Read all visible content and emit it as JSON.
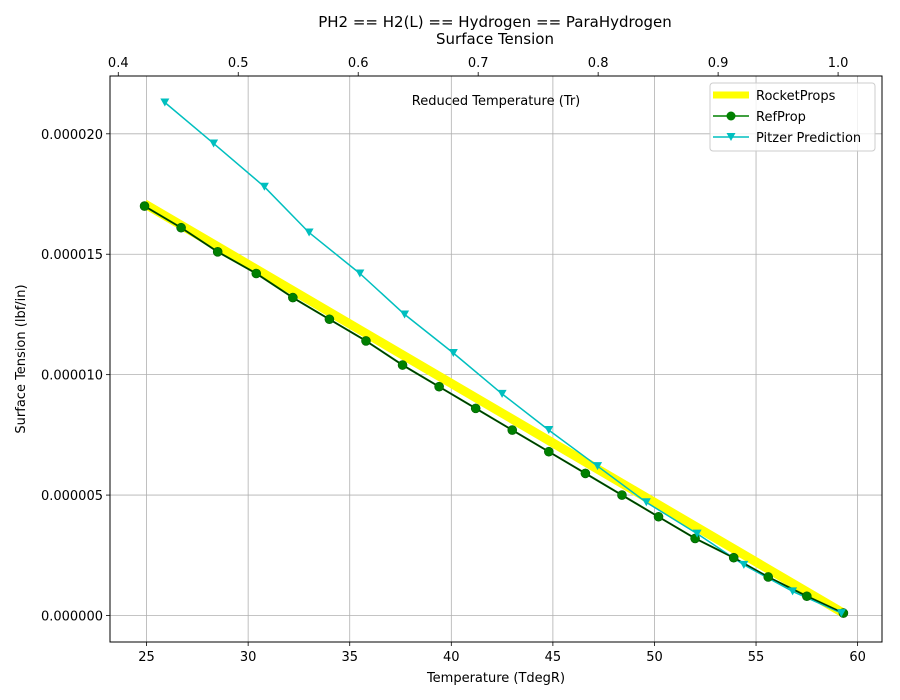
{
  "chart_data": {
    "type": "line",
    "title_line1": "PH2 == H2(L) == Hydrogen == ParaHydrogen",
    "title_line2": "Surface Tension",
    "xlabel": "Temperature (TdegR)",
    "ylabel": "Surface Tension (lbf/in)",
    "top_axis_label": "Reduced Temperature (Tr)",
    "xlim": [
      23.2,
      61.2
    ],
    "ylim": [
      -1.1e-06,
      2.24e-05
    ],
    "top_xlim": [
      0.3931,
      1.0366
    ],
    "x_ticks": [
      25,
      30,
      35,
      40,
      45,
      50,
      55,
      60
    ],
    "x_tick_labels": [
      "25",
      "30",
      "35",
      "40",
      "45",
      "50",
      "55",
      "60"
    ],
    "top_ticks": [
      0.4,
      0.5,
      0.6,
      0.7,
      0.8,
      0.9,
      1.0
    ],
    "top_tick_labels": [
      "0.4",
      "0.5",
      "0.6",
      "0.7",
      "0.8",
      "0.9",
      "1.0"
    ],
    "y_ticks": [
      0,
      5e-06,
      1e-05,
      1.5e-05,
      2e-05
    ],
    "y_tick_labels": [
      "0.000000",
      "0.000005",
      "0.000010",
      "0.000015",
      "0.000020"
    ],
    "grid": true,
    "legend_position": "top-right",
    "series": [
      {
        "name": "RocketProps",
        "color": "#ffff00",
        "style": "thick-line",
        "x": [
          24.9,
          59.3
        ],
        "y": [
          1.71e-05,
          1e-07
        ]
      },
      {
        "name": "RefProp",
        "color": "#008000",
        "style": "line-circle",
        "x": [
          24.9,
          26.7,
          28.5,
          30.4,
          32.2,
          34.0,
          35.8,
          37.6,
          39.4,
          41.2,
          43.0,
          44.8,
          46.6,
          48.4,
          50.2,
          52.0,
          53.9,
          55.6,
          57.5,
          59.3
        ],
        "y": [
          1.7e-05,
          1.61e-05,
          1.51e-05,
          1.42e-05,
          1.32e-05,
          1.23e-05,
          1.14e-05,
          1.04e-05,
          9.5e-06,
          8.6e-06,
          7.7e-06,
          6.8e-06,
          5.9e-06,
          5e-06,
          4.1e-06,
          3.2e-06,
          2.4e-06,
          1.6e-06,
          8e-07,
          1e-07
        ]
      },
      {
        "name": "Pitzer Prediction",
        "color": "#00bfbf",
        "style": "line-triangle-down",
        "x": [
          25.9,
          28.3,
          30.8,
          33.0,
          35.5,
          37.7,
          40.1,
          42.5,
          44.8,
          47.2,
          49.6,
          52.1,
          54.4,
          56.8,
          59.2
        ],
        "y": [
          2.13e-05,
          1.96e-05,
          1.78e-05,
          1.59e-05,
          1.42e-05,
          1.25e-05,
          1.09e-05,
          9.2e-06,
          7.7e-06,
          6.2e-06,
          4.7e-06,
          3.4e-06,
          2.1e-06,
          1e-06,
          1e-07
        ]
      }
    ]
  }
}
